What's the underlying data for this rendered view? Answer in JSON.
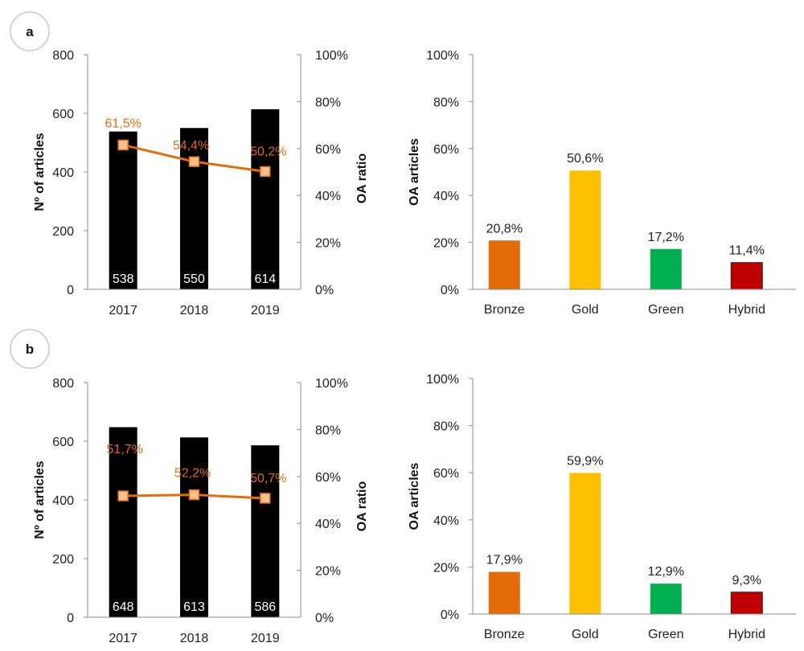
{
  "panels": [
    {
      "label": "a"
    },
    {
      "label": "b"
    }
  ],
  "colors": {
    "bar": "#000000",
    "line": "#e46c0a",
    "marker_fill": "#fac090",
    "axis": "#8c8c8c",
    "Bronze": "#e36c09",
    "Gold": "#ffc000",
    "Green": "#00b050",
    "Hybrid": "#c00000"
  },
  "chart_data": [
    {
      "id": "a-combo",
      "panel": "a",
      "type": "bar",
      "categories": [
        "2017",
        "2018",
        "2019"
      ],
      "series": [
        {
          "name": "Nº of articles",
          "axis": "left",
          "type": "bar",
          "values": [
            538,
            550,
            614
          ],
          "labels": [
            "538",
            "550",
            "614"
          ]
        },
        {
          "name": "OA ratio",
          "axis": "right",
          "type": "line",
          "values": [
            61.5,
            54.4,
            50.2
          ],
          "labels": [
            "61,5%",
            "54,4%",
            "50,2%"
          ]
        }
      ],
      "ylabel": "Nº of articles",
      "y2label": "OA ratio",
      "ylim": [
        0,
        800
      ],
      "y2lim": [
        0,
        100
      ],
      "yticks": [
        "0",
        "200",
        "400",
        "600",
        "800"
      ],
      "y2ticks": [
        "0%",
        "20%",
        "40%",
        "60%",
        "80%",
        "100%"
      ],
      "grid": false
    },
    {
      "id": "a-types",
      "panel": "a",
      "type": "bar",
      "categories": [
        "Bronze",
        "Gold",
        "Green",
        "Hybrid"
      ],
      "values": [
        20.8,
        50.6,
        17.2,
        11.4
      ],
      "labels": [
        "20,8%",
        "50,6%",
        "17,2%",
        "11,4%"
      ],
      "ylabel": "OA articles",
      "ylim": [
        0,
        100
      ],
      "yticks": [
        "0%",
        "20%",
        "40%",
        "60%",
        "80%",
        "100%"
      ],
      "grid": false
    },
    {
      "id": "b-combo",
      "panel": "b",
      "type": "bar",
      "categories": [
        "2017",
        "2018",
        "2019"
      ],
      "series": [
        {
          "name": "Nº of articles",
          "axis": "left",
          "type": "bar",
          "values": [
            648,
            613,
            586
          ],
          "labels": [
            "648",
            "613",
            "586"
          ]
        },
        {
          "name": "OA ratio",
          "axis": "right",
          "type": "line",
          "values": [
            51.7,
            52.2,
            50.7
          ],
          "labels": [
            "51,7%",
            "52,2%",
            "50,7%"
          ]
        }
      ],
      "ylabel": "Nº of articles",
      "y2label": "OA ratio",
      "ylim": [
        0,
        800
      ],
      "y2lim": [
        0,
        100
      ],
      "yticks": [
        "0",
        "200",
        "400",
        "600",
        "800"
      ],
      "y2ticks": [
        "0%",
        "20%",
        "40%",
        "60%",
        "80%",
        "100%"
      ],
      "grid": false
    },
    {
      "id": "b-types",
      "panel": "b",
      "type": "bar",
      "categories": [
        "Bronze",
        "Gold",
        "Green",
        "Hybrid"
      ],
      "values": [
        17.9,
        59.9,
        12.9,
        9.3
      ],
      "labels": [
        "17,9%",
        "59,9%",
        "12,9%",
        "9,3%"
      ],
      "ylabel": "OA articles",
      "ylim": [
        0,
        100
      ],
      "yticks": [
        "0%",
        "20%",
        "40%",
        "60%",
        "80%",
        "100%"
      ],
      "grid": false
    }
  ]
}
